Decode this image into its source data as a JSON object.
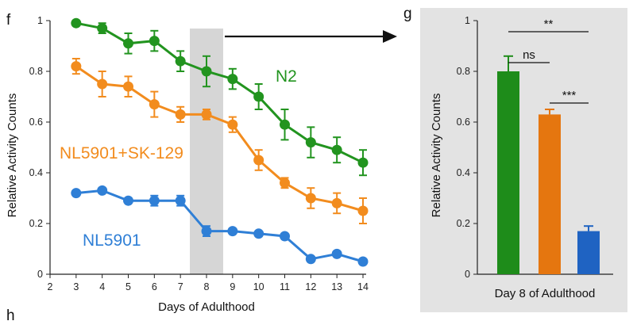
{
  "panels": {
    "left_letter": "f",
    "right_letter": "g",
    "bottom_letter": "h"
  },
  "colors": {
    "n2": "#22941f",
    "sk129": "#f28c1e",
    "nl5901": "#2f7fd6",
    "bar_n2": "#1e8c1a",
    "bar_sk129": "#e5760f",
    "bar_nl5901": "#1f63c2",
    "highlight": "#d6d6d6",
    "panel_bg": "#e3e3e3"
  },
  "chart_data": [
    {
      "type": "line",
      "xlabel": "Days of Adulthood",
      "ylabel": "Relative Activity Counts",
      "xlim": [
        2,
        14
      ],
      "ylim": [
        0,
        1
      ],
      "x_ticks": [
        "2",
        "3",
        "4",
        "5",
        "6",
        "7",
        "8",
        "9",
        "10",
        "11",
        "12",
        "13",
        "14"
      ],
      "y_ticks": [
        "0",
        "0.2",
        "0.4",
        "0.6",
        "0.8",
        "1"
      ],
      "highlight_x": 8,
      "x": [
        3,
        4,
        5,
        6,
        7,
        8,
        9,
        10,
        11,
        12,
        13,
        14
      ],
      "series": [
        {
          "name": "N2",
          "values": [
            0.99,
            0.97,
            0.91,
            0.92,
            0.84,
            0.8,
            0.77,
            0.7,
            0.59,
            0.52,
            0.49,
            0.44
          ],
          "errors": [
            0.01,
            0.02,
            0.04,
            0.04,
            0.04,
            0.06,
            0.04,
            0.05,
            0.06,
            0.06,
            0.05,
            0.05
          ]
        },
        {
          "name": "NL5901+SK-129",
          "values": [
            0.82,
            0.75,
            0.74,
            0.67,
            0.63,
            0.63,
            0.59,
            0.45,
            0.36,
            0.3,
            0.28,
            0.25
          ],
          "errors": [
            0.03,
            0.05,
            0.04,
            0.05,
            0.03,
            0.02,
            0.03,
            0.04,
            0.02,
            0.04,
            0.04,
            0.05
          ]
        },
        {
          "name": "NL5901",
          "values": [
            0.32,
            0.33,
            0.29,
            0.29,
            0.29,
            0.17,
            0.17,
            0.16,
            0.15,
            0.06,
            0.08,
            0.05
          ],
          "errors": [
            0.01,
            0.01,
            0.01,
            0.02,
            0.02,
            0.02,
            0.01,
            0.01,
            0.01,
            0.01,
            0.01,
            0.01
          ]
        }
      ]
    },
    {
      "type": "bar",
      "xlabel": "Day 8 of Adulthood",
      "ylabel": "Relative Activity Counts",
      "ylim": [
        0,
        1
      ],
      "y_ticks": [
        "0",
        "0.2",
        "0.4",
        "0.6",
        "0.8",
        "1"
      ],
      "values": [
        0.8,
        0.63,
        0.17
      ],
      "errors": [
        0.06,
        0.02,
        0.02
      ],
      "significance": [
        {
          "from": 0,
          "to": 1,
          "label": "ns"
        },
        {
          "from": 0,
          "to": 2,
          "label": "**"
        },
        {
          "from": 1,
          "to": 2,
          "label": "***"
        }
      ]
    }
  ]
}
